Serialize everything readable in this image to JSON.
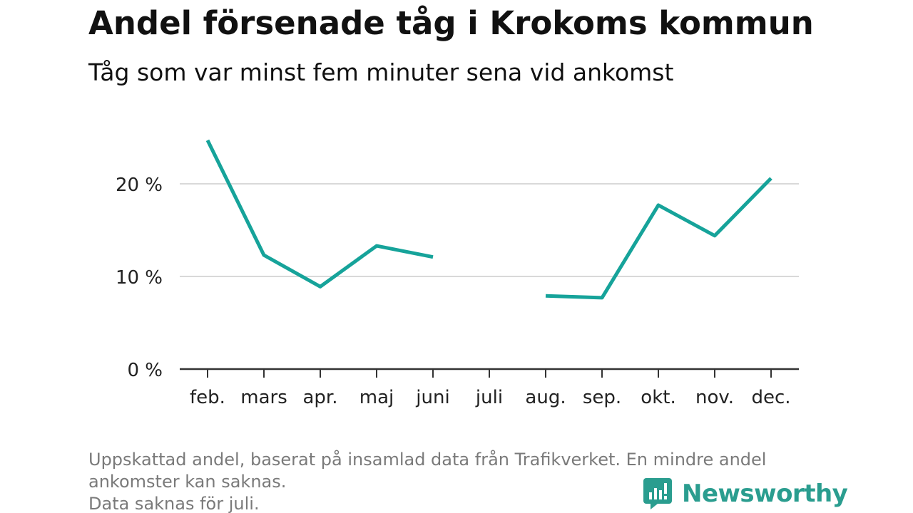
{
  "chart_data": {
    "type": "line",
    "title": "Andel försenade tåg i Krokoms kommun",
    "subtitle": "Tåg som var minst fem minuter sena vid ankomst",
    "categories": [
      "feb.",
      "mars",
      "apr.",
      "maj",
      "juni",
      "juli",
      "aug.",
      "sep.",
      "okt.",
      "nov.",
      "dec."
    ],
    "series": [
      {
        "values": [
          24.7,
          12.3,
          8.9,
          13.3,
          12.1,
          null,
          7.9,
          7.7,
          17.7,
          14.4,
          20.6
        ],
        "color": "#16a39a"
      }
    ],
    "y_ticks": [
      {
        "value": 0,
        "label": "0 %"
      },
      {
        "value": 10,
        "label": "10 %"
      },
      {
        "value": 20,
        "label": "20 %"
      }
    ],
    "ylim": [
      0,
      25
    ],
    "grid": true,
    "xlabel": "",
    "ylabel": ""
  },
  "footnote": {
    "line1": "Uppskattad andel, baserat på insamlad data från Trafikverket. En mindre andel",
    "line2": "ankomster kan saknas.",
    "line3": "Data saknas för juli."
  },
  "brand": {
    "name": "Newsworthy",
    "icon": "newsworthy-logo-icon",
    "color": "#2a9d8f"
  }
}
